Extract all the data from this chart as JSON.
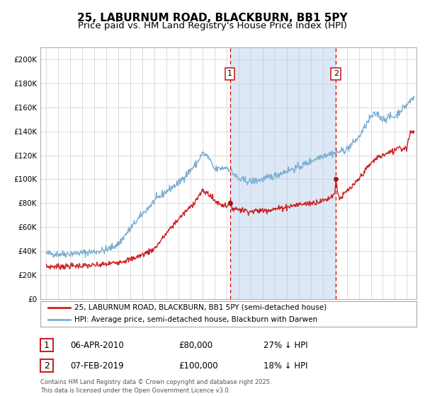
{
  "title1": "25, LABURNUM ROAD, BLACKBURN, BB1 5PY",
  "title2": "Price paid vs. HM Land Registry's House Price Index (HPI)",
  "legend_red": "25, LABURNUM ROAD, BLACKBURN, BB1 5PY (semi-detached house)",
  "legend_blue": "HPI: Average price, semi-detached house, Blackburn with Darwen",
  "footer": "Contains HM Land Registry data © Crown copyright and database right 2025.\nThis data is licensed under the Open Government Licence v3.0.",
  "annotation1_date": "06-APR-2010",
  "annotation1_price": "£80,000",
  "annotation1_hpi": "27% ↓ HPI",
  "annotation2_date": "07-FEB-2019",
  "annotation2_price": "£100,000",
  "annotation2_hpi": "18% ↓ HPI",
  "vline1_x": 2010.27,
  "vline2_x": 2019.1,
  "sale1_x": 2010.27,
  "sale1_y": 80000,
  "sale2_x": 2019.1,
  "sale2_y": 100000,
  "ylim": [
    0,
    210000
  ],
  "xlim_start": 1994.5,
  "xlim_end": 2025.8,
  "background_color": "#ffffff",
  "plot_bg": "#ffffff",
  "shade_color": "#dce8f5",
  "grid_color": "#cccccc",
  "red_color": "#cc2222",
  "blue_color": "#7bafd4",
  "title_fontsize": 11,
  "subtitle_fontsize": 9.5
}
